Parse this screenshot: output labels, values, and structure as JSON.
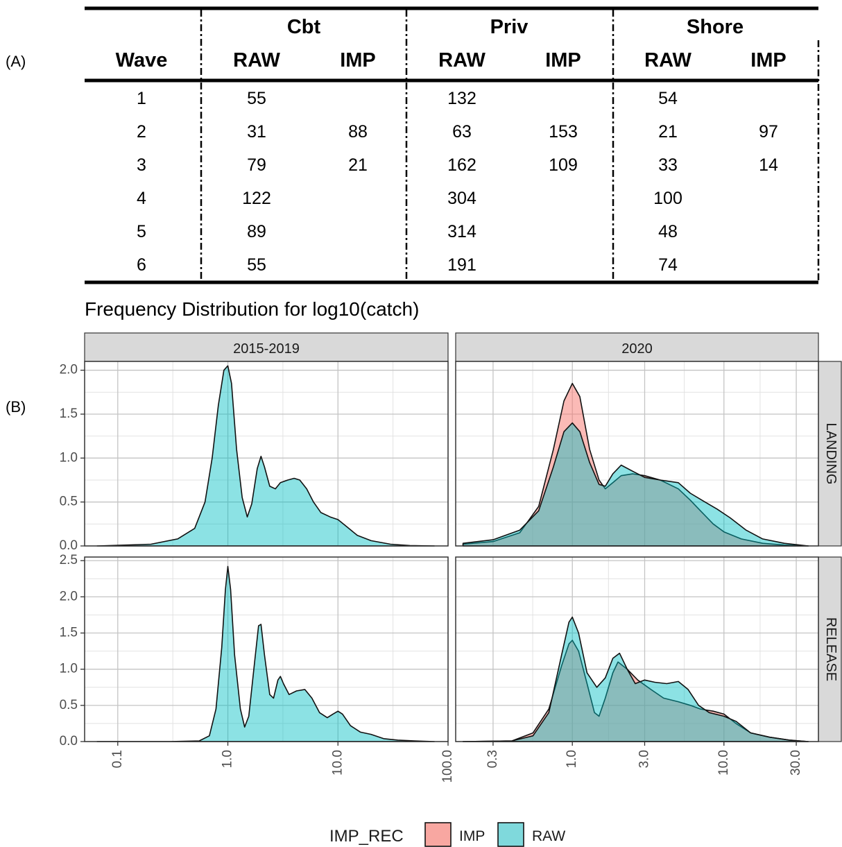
{
  "labels": {
    "a": "(A)",
    "b": "(B)"
  },
  "table": {
    "groups": [
      "Cbt",
      "Priv",
      "Shore"
    ],
    "columns": [
      "Wave",
      "RAW",
      "IMP",
      "RAW",
      "IMP",
      "RAW",
      "IMP"
    ],
    "rows": [
      [
        "1",
        "55",
        "",
        "132",
        "",
        "54",
        ""
      ],
      [
        "2",
        "31",
        "88",
        "63",
        "153",
        "21",
        "97"
      ],
      [
        "3",
        "79",
        "21",
        "162",
        "109",
        "33",
        "14"
      ],
      [
        "4",
        "122",
        "",
        "304",
        "",
        "100",
        ""
      ],
      [
        "5",
        "89",
        "",
        "314",
        "",
        "48",
        ""
      ],
      [
        "6",
        "55",
        "",
        "191",
        "",
        "74",
        ""
      ]
    ]
  },
  "chart_data": {
    "type": "area",
    "title": "Frequency Distribution for log10(catch)",
    "x_scale": "log10",
    "columns": [
      "2015-2019",
      "2020"
    ],
    "rows": [
      "LANDING",
      "RELEASE"
    ],
    "y_ranges": {
      "LANDING": [
        0,
        2.1
      ],
      "RELEASE": [
        0,
        2.55
      ]
    },
    "y_ticks": {
      "LANDING": [
        0.0,
        0.5,
        1.0,
        1.5,
        2.0
      ],
      "RELEASE": [
        0.0,
        0.5,
        1.0,
        1.5,
        2.0,
        2.5
      ]
    },
    "y_tick_labels": {
      "LANDING": [
        "0.0",
        "0.5",
        "1.0",
        "1.5",
        "2.0"
      ],
      "RELEASE": [
        "0.0",
        "0.5",
        "1.0",
        "1.5",
        "2.0",
        "2.5"
      ]
    },
    "x_ranges": {
      "2015-2019": [
        0.05,
        100
      ],
      "2020": [
        0.17,
        42
      ]
    },
    "x_ticks": {
      "2015-2019": [
        0.1,
        1.0,
        10.0,
        100.0
      ],
      "2020": [
        0.3,
        1.0,
        3.0,
        10.0,
        30.0
      ]
    },
    "x_tick_labels": {
      "2015-2019": [
        "0.1",
        "1.0",
        "10.0",
        "100.0"
      ],
      "2020": [
        "0.3",
        "1.0",
        "3.0",
        "10.0",
        "30.0"
      ]
    },
    "legend": {
      "title": "IMP_REC",
      "position": "bottom",
      "entries": [
        "IMP",
        "RAW"
      ]
    },
    "colors": {
      "IMP": "#f8a7a1",
      "RAW": "#7fd9dc",
      "IMP_fill": "rgba(248,118,109,0.5)",
      "RAW_fill": "rgba(0,191,196,0.45)"
    },
    "panels": [
      {
        "col": "2015-2019",
        "row": "LANDING",
        "series": [
          {
            "name": "RAW",
            "points": [
              [
                0.065,
                0
              ],
              [
                0.2,
                0.02
              ],
              [
                0.35,
                0.08
              ],
              [
                0.5,
                0.2
              ],
              [
                0.62,
                0.5
              ],
              [
                0.72,
                1.0
              ],
              [
                0.82,
                1.6
              ],
              [
                0.92,
                2.0
              ],
              [
                1.0,
                2.05
              ],
              [
                1.08,
                1.85
              ],
              [
                1.2,
                1.1
              ],
              [
                1.35,
                0.55
              ],
              [
                1.5,
                0.33
              ],
              [
                1.65,
                0.48
              ],
              [
                1.85,
                0.88
              ],
              [
                2.0,
                1.02
              ],
              [
                2.15,
                0.9
              ],
              [
                2.4,
                0.68
              ],
              [
                2.7,
                0.65
              ],
              [
                3.0,
                0.72
              ],
              [
                3.5,
                0.75
              ],
              [
                4.0,
                0.77
              ],
              [
                4.5,
                0.75
              ],
              [
                5.2,
                0.65
              ],
              [
                6.0,
                0.5
              ],
              [
                7.0,
                0.38
              ],
              [
                8.5,
                0.33
              ],
              [
                10.0,
                0.3
              ],
              [
                12.0,
                0.22
              ],
              [
                15.0,
                0.12
              ],
              [
                20.0,
                0.06
              ],
              [
                30.0,
                0.02
              ],
              [
                45.0,
                0.005
              ],
              [
                75.0,
                0
              ]
            ]
          }
        ]
      },
      {
        "col": "2020",
        "row": "LANDING",
        "series": [
          {
            "name": "IMP",
            "points": [
              [
                0.19,
                0.02
              ],
              [
                0.3,
                0.05
              ],
              [
                0.45,
                0.15
              ],
              [
                0.6,
                0.45
              ],
              [
                0.75,
                1.1
              ],
              [
                0.88,
                1.65
              ],
              [
                1.0,
                1.85
              ],
              [
                1.12,
                1.7
              ],
              [
                1.3,
                1.1
              ],
              [
                1.5,
                0.75
              ],
              [
                1.65,
                0.65
              ],
              [
                1.85,
                0.72
              ],
              [
                2.1,
                0.8
              ],
              [
                2.5,
                0.82
              ],
              [
                3.0,
                0.8
              ],
              [
                3.8,
                0.75
              ],
              [
                5.0,
                0.65
              ],
              [
                6.0,
                0.52
              ],
              [
                7.0,
                0.4
              ],
              [
                8.5,
                0.25
              ],
              [
                10.0,
                0.16
              ],
              [
                13.0,
                0.08
              ],
              [
                18.0,
                0.03
              ],
              [
                25.0,
                0.01
              ],
              [
                36.0,
                0
              ]
            ]
          },
          {
            "name": "RAW",
            "points": [
              [
                0.19,
                0.03
              ],
              [
                0.3,
                0.07
              ],
              [
                0.45,
                0.18
              ],
              [
                0.6,
                0.4
              ],
              [
                0.75,
                0.9
              ],
              [
                0.88,
                1.3
              ],
              [
                1.0,
                1.4
              ],
              [
                1.12,
                1.3
              ],
              [
                1.3,
                0.95
              ],
              [
                1.5,
                0.7
              ],
              [
                1.65,
                0.68
              ],
              [
                1.85,
                0.82
              ],
              [
                2.1,
                0.92
              ],
              [
                2.5,
                0.85
              ],
              [
                3.0,
                0.78
              ],
              [
                3.8,
                0.75
              ],
              [
                5.0,
                0.72
              ],
              [
                6.0,
                0.6
              ],
              [
                7.5,
                0.5
              ],
              [
                9.0,
                0.42
              ],
              [
                11.0,
                0.32
              ],
              [
                14.0,
                0.18
              ],
              [
                18.0,
                0.08
              ],
              [
                25.0,
                0.03
              ],
              [
                36.0,
                0
              ]
            ]
          }
        ]
      },
      {
        "col": "2015-2019",
        "row": "RELEASE",
        "series": [
          {
            "name": "RAW",
            "points": [
              [
                0.065,
                0
              ],
              [
                0.3,
                0
              ],
              [
                0.55,
                0.01
              ],
              [
                0.68,
                0.08
              ],
              [
                0.78,
                0.45
              ],
              [
                0.88,
                1.3
              ],
              [
                0.95,
                2.1
              ],
              [
                1.0,
                2.42
              ],
              [
                1.06,
                2.1
              ],
              [
                1.15,
                1.2
              ],
              [
                1.3,
                0.45
              ],
              [
                1.42,
                0.2
              ],
              [
                1.55,
                0.35
              ],
              [
                1.75,
                1.1
              ],
              [
                1.9,
                1.6
              ],
              [
                2.0,
                1.62
              ],
              [
                2.15,
                1.2
              ],
              [
                2.4,
                0.65
              ],
              [
                2.6,
                0.6
              ],
              [
                2.85,
                0.85
              ],
              [
                3.0,
                0.9
              ],
              [
                3.2,
                0.8
              ],
              [
                3.6,
                0.65
              ],
              [
                4.2,
                0.7
              ],
              [
                5.0,
                0.72
              ],
              [
                5.8,
                0.6
              ],
              [
                6.8,
                0.4
              ],
              [
                8.0,
                0.33
              ],
              [
                9.0,
                0.38
              ],
              [
                10.0,
                0.42
              ],
              [
                11.0,
                0.38
              ],
              [
                13.0,
                0.22
              ],
              [
                16.0,
                0.13
              ],
              [
                20.0,
                0.1
              ],
              [
                26.0,
                0.04
              ],
              [
                35.0,
                0.02
              ],
              [
                50.0,
                0.01
              ],
              [
                75.0,
                0
              ]
            ]
          }
        ]
      },
      {
        "col": "2020",
        "row": "RELEASE",
        "series": [
          {
            "name": "IMP",
            "points": [
              [
                0.19,
                0
              ],
              [
                0.4,
                0.01
              ],
              [
                0.55,
                0.12
              ],
              [
                0.7,
                0.45
              ],
              [
                0.85,
                1.05
              ],
              [
                0.95,
                1.35
              ],
              [
                1.0,
                1.4
              ],
              [
                1.1,
                1.25
              ],
              [
                1.25,
                0.8
              ],
              [
                1.4,
                0.4
              ],
              [
                1.5,
                0.35
              ],
              [
                1.65,
                0.6
              ],
              [
                1.85,
                0.95
              ],
              [
                2.0,
                1.1
              ],
              [
                2.3,
                1.0
              ],
              [
                2.7,
                0.85
              ],
              [
                3.3,
                0.72
              ],
              [
                4.0,
                0.6
              ],
              [
                5.0,
                0.55
              ],
              [
                6.0,
                0.5
              ],
              [
                7.0,
                0.45
              ],
              [
                8.5,
                0.42
              ],
              [
                10.0,
                0.38
              ],
              [
                12.0,
                0.25
              ],
              [
                15.0,
                0.12
              ],
              [
                20.0,
                0.06
              ],
              [
                27.0,
                0.02
              ],
              [
                36.0,
                0
              ]
            ]
          },
          {
            "name": "RAW",
            "points": [
              [
                0.19,
                0
              ],
              [
                0.4,
                0.01
              ],
              [
                0.55,
                0.08
              ],
              [
                0.7,
                0.4
              ],
              [
                0.85,
                1.2
              ],
              [
                0.95,
                1.65
              ],
              [
                1.0,
                1.72
              ],
              [
                1.1,
                1.5
              ],
              [
                1.25,
                0.95
              ],
              [
                1.45,
                0.75
              ],
              [
                1.65,
                0.88
              ],
              [
                1.85,
                1.15
              ],
              [
                2.05,
                1.22
              ],
              [
                2.3,
                1.0
              ],
              [
                2.6,
                0.8
              ],
              [
                3.0,
                0.85
              ],
              [
                3.5,
                0.82
              ],
              [
                4.2,
                0.8
              ],
              [
                5.0,
                0.83
              ],
              [
                5.8,
                0.72
              ],
              [
                6.8,
                0.5
              ],
              [
                8.0,
                0.4
              ],
              [
                10.0,
                0.35
              ],
              [
                12.0,
                0.28
              ],
              [
                15.0,
                0.12
              ],
              [
                20.0,
                0.06
              ],
              [
                27.0,
                0.02
              ],
              [
                36.0,
                0
              ]
            ]
          }
        ]
      }
    ]
  }
}
